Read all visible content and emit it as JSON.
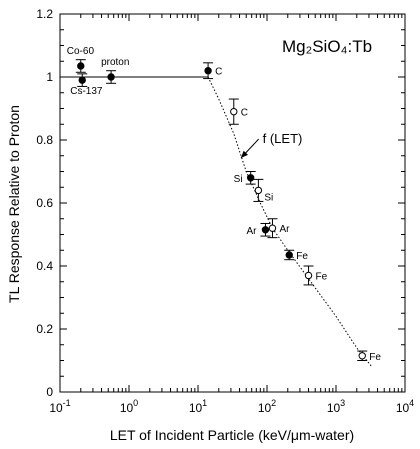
{
  "chart_data": {
    "type": "scatter",
    "title": "Mg₂SiO₄:Tb",
    "xlabel": "LET of Incident Particle (keV/μm-water)",
    "ylabel": "TL Response Relative to Proton",
    "xscale": "log",
    "xlim": [
      0.1,
      10000
    ],
    "ylim": [
      0,
      1.2
    ],
    "xticks": [
      0.1,
      1,
      10,
      100,
      1000,
      10000
    ],
    "xtick_labels": [
      {
        "base": "10",
        "exp": "-1"
      },
      {
        "base": "10",
        "exp": "0"
      },
      {
        "base": "10",
        "exp": "1"
      },
      {
        "base": "10",
        "exp": "2"
      },
      {
        "base": "10",
        "exp": "3"
      },
      {
        "base": "10",
        "exp": "4"
      }
    ],
    "yticks": [
      0,
      0.2,
      0.4,
      0.6,
      0.8,
      1.0,
      1.2
    ],
    "ytick_labels": [
      "0",
      "0.2",
      "0.4",
      "0.6",
      "0.8",
      "1",
      "1.2"
    ],
    "series": [
      {
        "marker": "filled-circle",
        "points": [
          {
            "x": 0.2,
            "y": 1.035,
            "err": 0.02,
            "label": "Co-60"
          },
          {
            "x": 0.21,
            "y": 0.99,
            "err": 0.02,
            "label": "Cs-137"
          },
          {
            "x": 0.55,
            "y": 1.0,
            "err": 0.02,
            "label": "proton"
          },
          {
            "x": 14,
            "y": 1.02,
            "err": 0.025,
            "label": "C"
          },
          {
            "x": 58,
            "y": 0.68,
            "err": 0.02,
            "label": "Si"
          },
          {
            "x": 95,
            "y": 0.515,
            "err": 0.02,
            "label": "Ar"
          },
          {
            "x": 210,
            "y": 0.435,
            "err": 0.015,
            "label": "Fe"
          }
        ]
      },
      {
        "marker": "open-circle",
        "points": [
          {
            "x": 33,
            "y": 0.89,
            "err": 0.04,
            "label": "C"
          },
          {
            "x": 75,
            "y": 0.64,
            "err": 0.035,
            "label": "Si"
          },
          {
            "x": 120,
            "y": 0.52,
            "err": 0.03,
            "label": "Ar"
          },
          {
            "x": 400,
            "y": 0.37,
            "err": 0.03,
            "label": "Fe"
          },
          {
            "x": 2400,
            "y": 0.115,
            "err": 0.015,
            "label": "Fe"
          }
        ]
      }
    ],
    "fit_lines": [
      {
        "style": "solid",
        "points": [
          [
            0.1,
            1.0
          ],
          [
            14,
            1.0
          ]
        ]
      },
      {
        "style": "dotted",
        "points": [
          [
            14,
            1.0
          ],
          [
            20,
            0.93
          ],
          [
            33,
            0.82
          ],
          [
            50,
            0.7
          ],
          [
            80,
            0.6
          ],
          [
            120,
            0.52
          ],
          [
            200,
            0.45
          ],
          [
            400,
            0.36
          ],
          [
            1000,
            0.24
          ],
          [
            2000,
            0.14
          ],
          [
            3300,
            0.08
          ]
        ]
      }
    ],
    "annotations": [
      {
        "text": "f (LET)",
        "x": 220,
        "y": 0.79,
        "arrow_to": {
          "x": 38,
          "y": 0.74
        }
      }
    ]
  }
}
